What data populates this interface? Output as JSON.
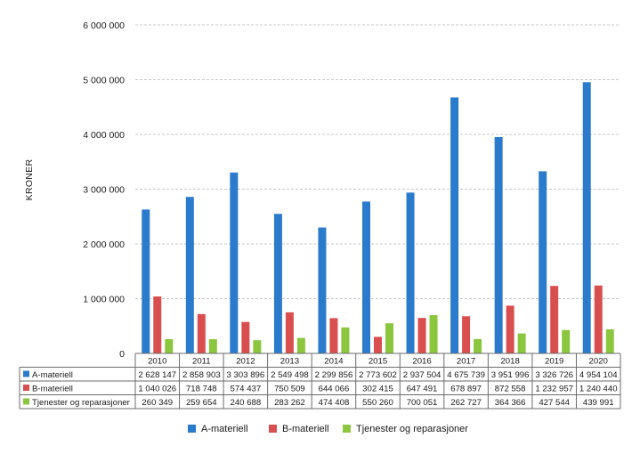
{
  "chart_data": {
    "type": "bar",
    "ylabel": "KRONER",
    "xlabel": "",
    "title": "",
    "ylim": [
      0,
      6000000
    ],
    "yticks": [
      0,
      1000000,
      2000000,
      3000000,
      4000000,
      5000000,
      6000000
    ],
    "ytick_labels": [
      "0",
      "1 000 000",
      "2 000 000",
      "3 000 000",
      "4 000 000",
      "5 000 000",
      "6 000 000"
    ],
    "grid": true,
    "legend_position": "bottom",
    "categories": [
      "2010",
      "2011",
      "2012",
      "2013",
      "2014",
      "2015",
      "2016",
      "2017",
      "2018",
      "2019",
      "2020"
    ],
    "series": [
      {
        "name": "A-materiell",
        "color": "#2b7bcc",
        "values": [
          2628147,
          2858903,
          3303896,
          2549498,
          2299856,
          2773602,
          2937504,
          4675739,
          3951996,
          3326726,
          4954104
        ],
        "labels": [
          "2 628 147",
          "2 858 903",
          "3 303 896",
          "2 549 498",
          "2 299 856",
          "2 773 602",
          "2 937 504",
          "4 675 739",
          "3 951 996",
          "3 326 726",
          "4 954 104"
        ]
      },
      {
        "name": "B-materiell",
        "color": "#d94f4f",
        "values": [
          1040026,
          718748,
          574437,
          750509,
          644066,
          302415,
          647491,
          678897,
          872558,
          1232957,
          1240440
        ],
        "labels": [
          "1 040 026",
          "718 748",
          "574 437",
          "750 509",
          "644 066",
          "302 415",
          "647 491",
          "678 897",
          "872 558",
          "1 232 957",
          "1 240 440"
        ]
      },
      {
        "name": "Tjenester og reparasjoner",
        "color": "#8cc63f",
        "values": [
          260349,
          259654,
          240688,
          283262,
          474408,
          550260,
          700051,
          262727,
          364366,
          427544,
          439991
        ],
        "labels": [
          "260 349",
          "259 654",
          "240 688",
          "283 262",
          "474 408",
          "550 260",
          "700 051",
          "262 727",
          "364 366",
          "427 544",
          "439 991"
        ]
      }
    ]
  }
}
